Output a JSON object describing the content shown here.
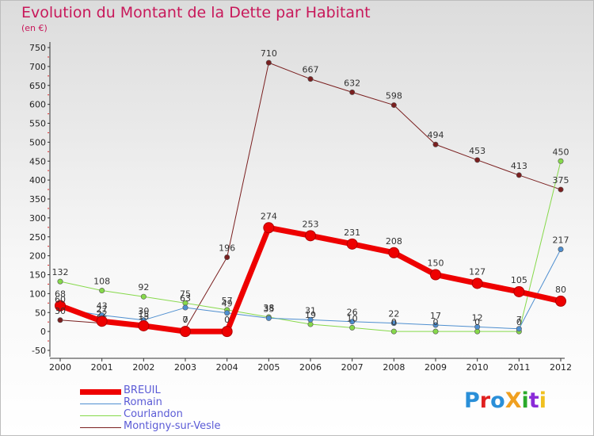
{
  "title": "Evolution du Montant de la Dette par Habitant",
  "subtitle": "(en €)",
  "logo": {
    "text": "ProXiti",
    "colors": [
      "#2a8fd8",
      "#e02020",
      "#2a8fd8",
      "#f0a020",
      "#2aaa2a",
      "#8a2ad8",
      "#f0c020"
    ]
  },
  "chart_data": {
    "type": "line",
    "title": "Evolution du Montant de la Dette par Habitant",
    "subtitle": "(en €)",
    "x": [
      2000,
      2001,
      2002,
      2003,
      2004,
      2005,
      2006,
      2007,
      2008,
      2009,
      2010,
      2011,
      2012
    ],
    "ylim": [
      -50,
      750
    ],
    "yticks": [
      -50,
      0,
      50,
      100,
      150,
      200,
      250,
      300,
      350,
      400,
      450,
      500,
      550,
      600,
      650,
      700,
      750
    ],
    "grid": false,
    "legend": "bottom-left",
    "series": [
      {
        "name": "Montigny-sur-Vesle",
        "color": "#7a1f1f",
        "width": 1,
        "values": [
          30,
          22,
          15,
          7,
          196,
          710,
          667,
          632,
          598,
          494,
          453,
          413,
          375
        ],
        "labels": [
          "30",
          "22",
          "15",
          "7",
          "196",
          "710",
          "667",
          "632",
          "598",
          "494",
          "453",
          "413",
          "375"
        ]
      },
      {
        "name": "Courlandon",
        "color": "#86d94a",
        "width": 1,
        "values": [
          132,
          108,
          92,
          75,
          57,
          38,
          19,
          10,
          0,
          0,
          0,
          0,
          450
        ],
        "labels": [
          "132",
          "108",
          "92",
          "75",
          "57",
          "38",
          "19",
          "10",
          "0",
          "0",
          "0",
          "0",
          "450"
        ]
      },
      {
        "name": "Romain",
        "color": "#4f8fd0",
        "width": 1,
        "values": [
          60,
          43,
          30,
          63,
          49,
          35,
          31,
          26,
          22,
          17,
          12,
          7,
          217
        ],
        "labels": [
          "60",
          "43",
          "30",
          "63",
          "49",
          "35",
          "31",
          "26",
          "22",
          "17",
          "12",
          "7",
          "217"
        ]
      },
      {
        "name": "BREUIL",
        "color": "#ee0000",
        "width": 7,
        "values": [
          68,
          27,
          15,
          0,
          0,
          274,
          253,
          231,
          208,
          150,
          127,
          105,
          80
        ],
        "labels": [
          "68",
          "27",
          "15",
          "0",
          "0",
          "274",
          "253",
          "231",
          "208",
          "150",
          "127",
          "105",
          "80"
        ]
      }
    ]
  },
  "legend": {
    "items": [
      {
        "name": "BREUIL",
        "color": "#ee0000",
        "thickness": 7
      },
      {
        "name": "Romain",
        "color": "#4f8fd0",
        "thickness": 1
      },
      {
        "name": "Courlandon",
        "color": "#86d94a",
        "thickness": 1
      },
      {
        "name": "Montigny-sur-Vesle",
        "color": "#7a1f1f",
        "thickness": 1
      }
    ]
  }
}
